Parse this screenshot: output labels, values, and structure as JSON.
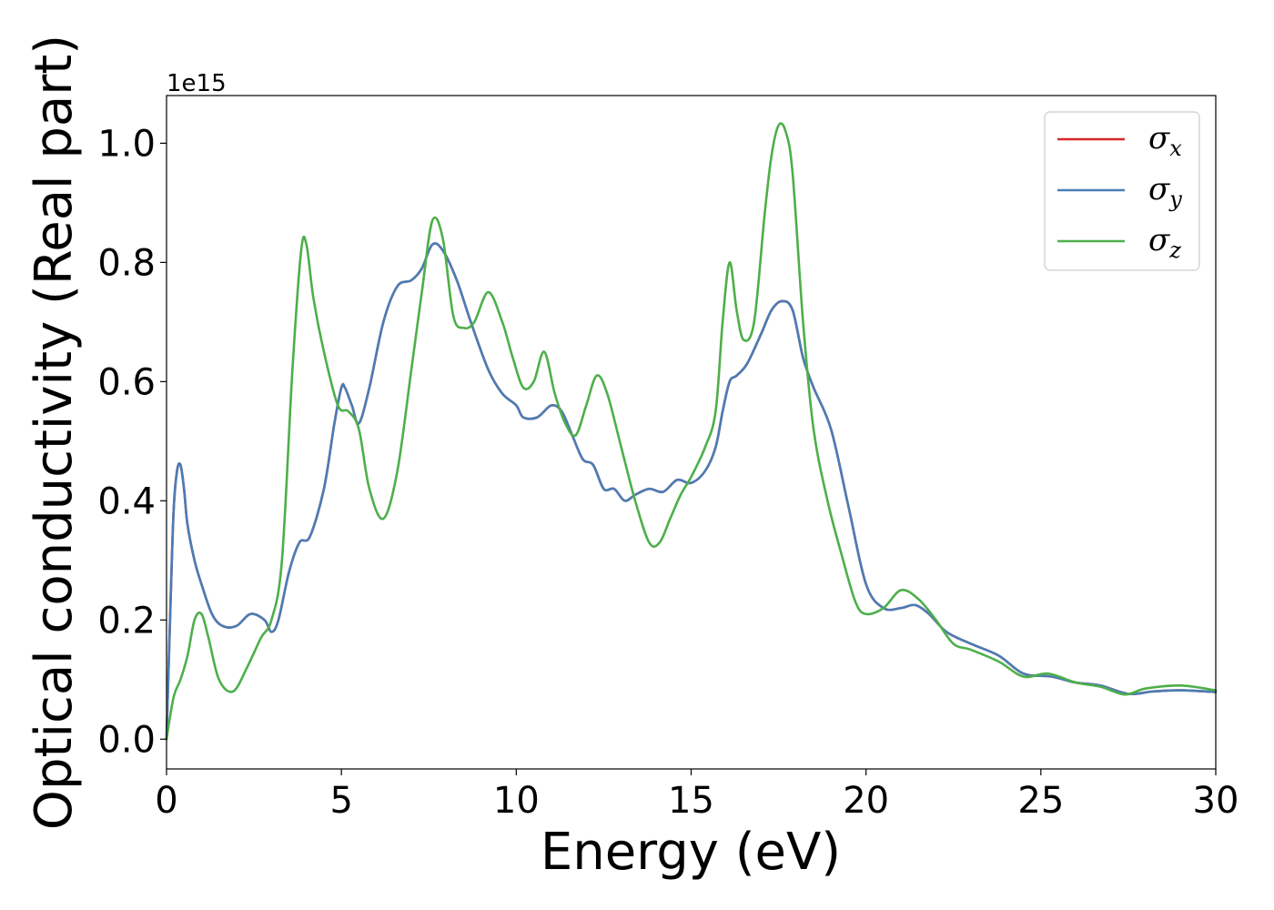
{
  "chart_data": {
    "type": "line",
    "xlabel": "Energy (eV)",
    "ylabel": "Optical conductivity (Real part)",
    "y_offset_text": "1e15",
    "xlim": [
      0,
      30
    ],
    "ylim": [
      -0.05,
      1.08
    ],
    "y_scale": 1000000000000000.0,
    "x_ticks": [
      0,
      5,
      10,
      15,
      20,
      25,
      30
    ],
    "x_tick_labels": [
      "0",
      "5",
      "10",
      "15",
      "20",
      "25",
      "30"
    ],
    "y_ticks": [
      0.0,
      0.2,
      0.4,
      0.6,
      0.8,
      1.0
    ],
    "y_tick_labels": [
      "0.0",
      "0.2",
      "0.4",
      "0.6",
      "0.8",
      "1.0"
    ],
    "grid": false,
    "legend_position": "top-right",
    "series": [
      {
        "name": "σx",
        "legend_symbol": "σ",
        "legend_subscript": "x",
        "color": "#d62728",
        "x": [
          0,
          0.1,
          0.2,
          0.3,
          0.4,
          0.5,
          0.6,
          0.8,
          1.0,
          1.3,
          1.6,
          2.0,
          2.4,
          2.8,
          3.0,
          3.2,
          3.5,
          3.8,
          4.1,
          4.5,
          4.8,
          5.0,
          5.1,
          5.3,
          5.5,
          5.8,
          6.2,
          6.6,
          7.0,
          7.3,
          7.6,
          7.9,
          8.3,
          8.7,
          9.2,
          9.6,
          10.0,
          10.2,
          10.6,
          11.0,
          11.3,
          11.6,
          11.9,
          12.2,
          12.5,
          12.8,
          13.1,
          13.4,
          13.8,
          14.2,
          14.6,
          15.0,
          15.4,
          15.7,
          15.9,
          16.1,
          16.3,
          16.6,
          17.0,
          17.3,
          17.6,
          17.9,
          18.2,
          18.5,
          19.0,
          19.5,
          20.0,
          20.5,
          21.0,
          21.4,
          21.8,
          22.3,
          23.0,
          23.8,
          24.5,
          25.3,
          26.0,
          26.7,
          27.5,
          28.2,
          29.0,
          30.0
        ],
        "y": [
          0.0,
          0.2,
          0.38,
          0.45,
          0.46,
          0.42,
          0.36,
          0.3,
          0.26,
          0.21,
          0.19,
          0.19,
          0.21,
          0.2,
          0.18,
          0.2,
          0.28,
          0.33,
          0.34,
          0.42,
          0.53,
          0.59,
          0.59,
          0.56,
          0.53,
          0.59,
          0.7,
          0.76,
          0.77,
          0.79,
          0.83,
          0.82,
          0.77,
          0.7,
          0.62,
          0.58,
          0.56,
          0.54,
          0.54,
          0.56,
          0.55,
          0.51,
          0.47,
          0.46,
          0.42,
          0.42,
          0.4,
          0.41,
          0.42,
          0.415,
          0.435,
          0.43,
          0.45,
          0.49,
          0.55,
          0.6,
          0.61,
          0.63,
          0.68,
          0.72,
          0.735,
          0.72,
          0.64,
          0.59,
          0.52,
          0.39,
          0.26,
          0.22,
          0.22,
          0.225,
          0.21,
          0.18,
          0.16,
          0.14,
          0.11,
          0.105,
          0.095,
          0.09,
          0.076,
          0.08,
          0.082,
          0.079
        ]
      },
      {
        "name": "σy",
        "legend_symbol": "σ",
        "legend_subscript": "y",
        "color": "#4a7db5",
        "x": [
          0,
          0.1,
          0.2,
          0.3,
          0.4,
          0.5,
          0.6,
          0.8,
          1.0,
          1.3,
          1.6,
          2.0,
          2.4,
          2.8,
          3.0,
          3.2,
          3.5,
          3.8,
          4.1,
          4.5,
          4.8,
          5.0,
          5.1,
          5.3,
          5.5,
          5.8,
          6.2,
          6.6,
          7.0,
          7.3,
          7.6,
          7.9,
          8.3,
          8.7,
          9.2,
          9.6,
          10.0,
          10.2,
          10.6,
          11.0,
          11.3,
          11.6,
          11.9,
          12.2,
          12.5,
          12.8,
          13.1,
          13.4,
          13.8,
          14.2,
          14.6,
          15.0,
          15.4,
          15.7,
          15.9,
          16.1,
          16.3,
          16.6,
          17.0,
          17.3,
          17.6,
          17.9,
          18.2,
          18.5,
          19.0,
          19.5,
          20.0,
          20.5,
          21.0,
          21.4,
          21.8,
          22.3,
          23.0,
          23.8,
          24.5,
          25.3,
          26.0,
          26.7,
          27.5,
          28.2,
          29.0,
          30.0
        ],
        "y": [
          0.0,
          0.2,
          0.38,
          0.45,
          0.46,
          0.42,
          0.36,
          0.3,
          0.26,
          0.21,
          0.19,
          0.19,
          0.21,
          0.2,
          0.18,
          0.2,
          0.28,
          0.33,
          0.34,
          0.42,
          0.53,
          0.59,
          0.59,
          0.56,
          0.53,
          0.59,
          0.7,
          0.76,
          0.77,
          0.79,
          0.83,
          0.82,
          0.77,
          0.7,
          0.62,
          0.58,
          0.56,
          0.54,
          0.54,
          0.56,
          0.55,
          0.51,
          0.47,
          0.46,
          0.42,
          0.42,
          0.4,
          0.41,
          0.42,
          0.415,
          0.435,
          0.43,
          0.45,
          0.49,
          0.55,
          0.6,
          0.61,
          0.63,
          0.68,
          0.72,
          0.735,
          0.72,
          0.64,
          0.59,
          0.52,
          0.39,
          0.26,
          0.22,
          0.22,
          0.225,
          0.21,
          0.18,
          0.16,
          0.14,
          0.11,
          0.105,
          0.095,
          0.09,
          0.076,
          0.08,
          0.082,
          0.079
        ]
      },
      {
        "name": "σz",
        "legend_symbol": "σ",
        "legend_subscript": "z",
        "color": "#4daf4a",
        "x": [
          0,
          0.2,
          0.4,
          0.6,
          0.8,
          1.0,
          1.2,
          1.5,
          1.9,
          2.3,
          2.7,
          3.0,
          3.3,
          3.6,
          3.85,
          4.0,
          4.2,
          4.5,
          4.9,
          5.2,
          5.5,
          5.8,
          6.2,
          6.6,
          7.0,
          7.3,
          7.6,
          7.9,
          8.2,
          8.5,
          8.8,
          9.2,
          9.6,
          9.9,
          10.2,
          10.5,
          10.8,
          11.1,
          11.4,
          11.7,
          12.0,
          12.3,
          12.6,
          13.0,
          13.4,
          13.8,
          14.1,
          14.4,
          14.7,
          15.0,
          15.4,
          15.7,
          15.9,
          16.1,
          16.3,
          16.5,
          16.8,
          17.1,
          17.3,
          17.5,
          17.7,
          17.9,
          18.2,
          18.5,
          18.9,
          19.3,
          19.7,
          20.0,
          20.5,
          21.0,
          21.5,
          22.0,
          22.5,
          23.0,
          23.8,
          24.5,
          25.2,
          26.0,
          26.7,
          27.4,
          28.0,
          29.0,
          30.0
        ],
        "y": [
          0.0,
          0.07,
          0.1,
          0.14,
          0.2,
          0.21,
          0.17,
          0.1,
          0.08,
          0.12,
          0.17,
          0.2,
          0.3,
          0.62,
          0.82,
          0.83,
          0.74,
          0.65,
          0.56,
          0.55,
          0.52,
          0.42,
          0.37,
          0.45,
          0.62,
          0.75,
          0.87,
          0.84,
          0.71,
          0.69,
          0.7,
          0.75,
          0.7,
          0.64,
          0.59,
          0.6,
          0.65,
          0.58,
          0.53,
          0.51,
          0.56,
          0.61,
          0.58,
          0.49,
          0.4,
          0.33,
          0.33,
          0.37,
          0.41,
          0.44,
          0.49,
          0.55,
          0.7,
          0.8,
          0.72,
          0.67,
          0.7,
          0.88,
          0.98,
          1.03,
          1.02,
          0.95,
          0.7,
          0.52,
          0.4,
          0.31,
          0.23,
          0.21,
          0.22,
          0.25,
          0.235,
          0.2,
          0.16,
          0.15,
          0.13,
          0.105,
          0.11,
          0.095,
          0.088,
          0.075,
          0.085,
          0.09,
          0.082
        ]
      }
    ]
  }
}
